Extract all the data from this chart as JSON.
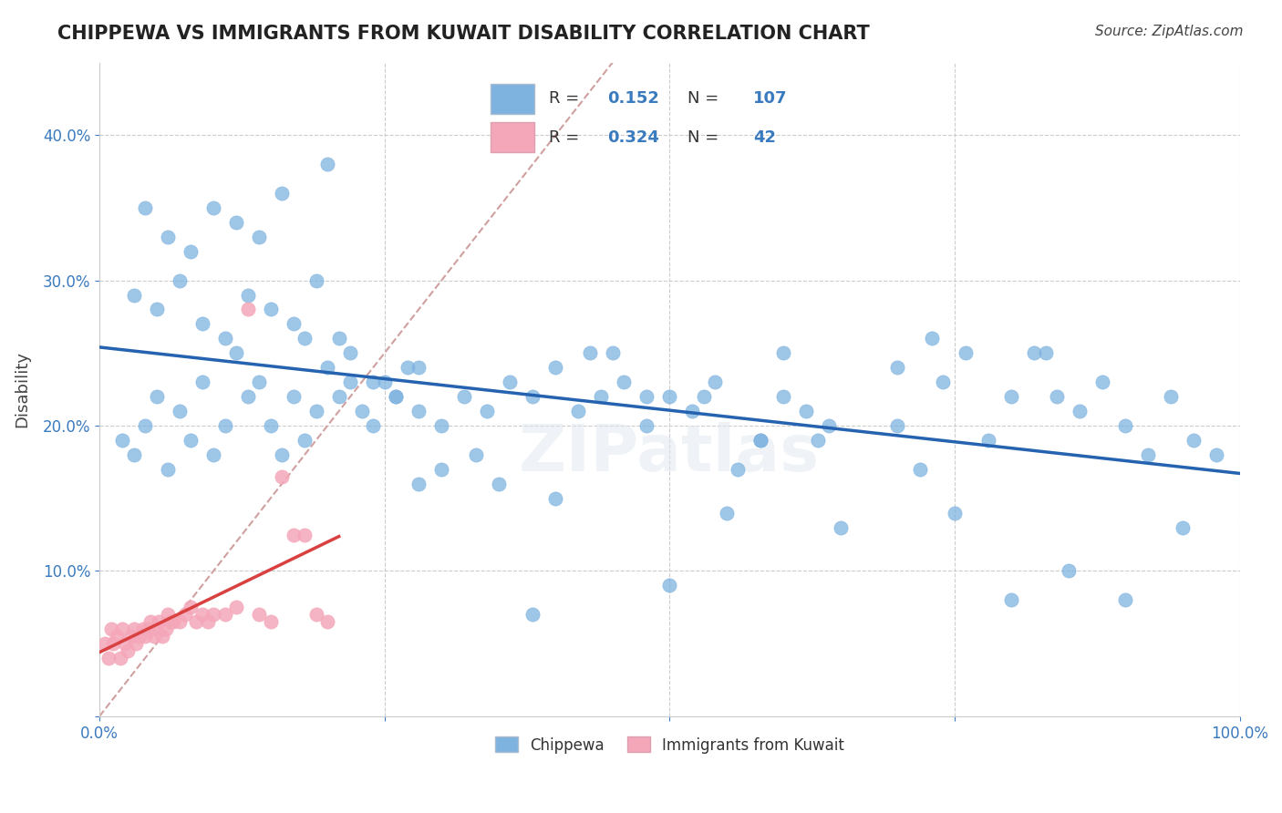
{
  "title": "CHIPPEWA VS IMMIGRANTS FROM KUWAIT DISABILITY CORRELATION CHART",
  "source": "Source: ZipAtlas.com",
  "xlabel": "",
  "ylabel": "Disability",
  "xlim": [
    0.0,
    1.0
  ],
  "ylim": [
    0.0,
    0.45
  ],
  "xticks": [
    0.0,
    0.25,
    0.5,
    0.75,
    1.0
  ],
  "xticklabels": [
    "0.0%",
    "",
    "",
    "",
    "100.0%"
  ],
  "yticks": [
    0.0,
    0.1,
    0.2,
    0.3,
    0.4
  ],
  "yticklabels": [
    "",
    "10.0%",
    "20.0%",
    "30.0%",
    "40.0%"
  ],
  "chippewa_R": 0.152,
  "chippewa_N": 107,
  "kuwait_R": 0.324,
  "kuwait_N": 42,
  "chippewa_color": "#7eb3e0",
  "kuwait_color": "#f4a7b9",
  "trend_chippewa_color": "#2563b0",
  "trend_kuwait_color": "#d94040",
  "diagonal_color": "#d0a0a0",
  "watermark": "ZIPatlas",
  "chippewa_x": [
    0.02,
    0.03,
    0.04,
    0.05,
    0.06,
    0.07,
    0.08,
    0.09,
    0.1,
    0.11,
    0.12,
    0.13,
    0.14,
    0.15,
    0.16,
    0.17,
    0.18,
    0.19,
    0.2,
    0.21,
    0.22,
    0.23,
    0.24,
    0.25,
    0.26,
    0.27,
    0.28,
    0.3,
    0.32,
    0.34,
    0.36,
    0.38,
    0.4,
    0.42,
    0.44,
    0.46,
    0.48,
    0.5,
    0.52,
    0.54,
    0.56,
    0.58,
    0.6,
    0.62,
    0.64,
    0.7,
    0.72,
    0.74,
    0.76,
    0.78,
    0.8,
    0.82,
    0.84,
    0.86,
    0.88,
    0.9,
    0.92,
    0.94,
    0.96,
    0.98,
    0.03,
    0.05,
    0.07,
    0.09,
    0.11,
    0.13,
    0.15,
    0.17,
    0.19,
    0.21,
    0.04,
    0.06,
    0.08,
    0.1,
    0.12,
    0.14,
    0.16,
    0.18,
    0.2,
    0.22,
    0.24,
    0.26,
    0.28,
    0.3,
    0.35,
    0.4,
    0.45,
    0.5,
    0.55,
    0.6,
    0.65,
    0.7,
    0.75,
    0.8,
    0.85,
    0.9,
    0.95,
    0.38,
    0.48,
    0.58,
    0.28,
    0.33,
    0.43,
    0.53,
    0.63,
    0.73,
    0.83
  ],
  "chippewa_y": [
    0.19,
    0.18,
    0.2,
    0.22,
    0.17,
    0.21,
    0.19,
    0.23,
    0.18,
    0.2,
    0.25,
    0.22,
    0.23,
    0.2,
    0.18,
    0.22,
    0.19,
    0.21,
    0.24,
    0.22,
    0.23,
    0.21,
    0.2,
    0.23,
    0.22,
    0.24,
    0.21,
    0.2,
    0.22,
    0.21,
    0.23,
    0.22,
    0.24,
    0.21,
    0.22,
    0.23,
    0.2,
    0.22,
    0.21,
    0.23,
    0.17,
    0.19,
    0.22,
    0.21,
    0.2,
    0.2,
    0.17,
    0.23,
    0.25,
    0.19,
    0.22,
    0.25,
    0.22,
    0.21,
    0.23,
    0.2,
    0.18,
    0.22,
    0.19,
    0.18,
    0.29,
    0.28,
    0.3,
    0.27,
    0.26,
    0.29,
    0.28,
    0.27,
    0.3,
    0.26,
    0.35,
    0.33,
    0.32,
    0.35,
    0.34,
    0.33,
    0.36,
    0.26,
    0.38,
    0.25,
    0.23,
    0.22,
    0.24,
    0.17,
    0.16,
    0.15,
    0.25,
    0.09,
    0.14,
    0.25,
    0.13,
    0.24,
    0.14,
    0.08,
    0.1,
    0.08,
    0.13,
    0.07,
    0.22,
    0.19,
    0.16,
    0.18,
    0.25,
    0.22,
    0.19,
    0.26,
    0.25
  ],
  "kuwait_x": [
    0.005,
    0.008,
    0.01,
    0.012,
    0.015,
    0.018,
    0.02,
    0.022,
    0.025,
    0.028,
    0.03,
    0.032,
    0.035,
    0.038,
    0.04,
    0.042,
    0.045,
    0.048,
    0.05,
    0.052,
    0.055,
    0.058,
    0.06,
    0.062,
    0.065,
    0.07,
    0.075,
    0.08,
    0.085,
    0.09,
    0.095,
    0.1,
    0.11,
    0.12,
    0.13,
    0.14,
    0.15,
    0.16,
    0.17,
    0.18,
    0.19,
    0.2
  ],
  "kuwait_y": [
    0.05,
    0.04,
    0.06,
    0.05,
    0.055,
    0.04,
    0.06,
    0.05,
    0.045,
    0.055,
    0.06,
    0.05,
    0.055,
    0.06,
    0.055,
    0.06,
    0.065,
    0.055,
    0.06,
    0.065,
    0.055,
    0.06,
    0.07,
    0.065,
    0.065,
    0.065,
    0.07,
    0.075,
    0.065,
    0.07,
    0.065,
    0.07,
    0.07,
    0.075,
    0.28,
    0.07,
    0.065,
    0.165,
    0.125,
    0.125,
    0.07,
    0.065
  ]
}
